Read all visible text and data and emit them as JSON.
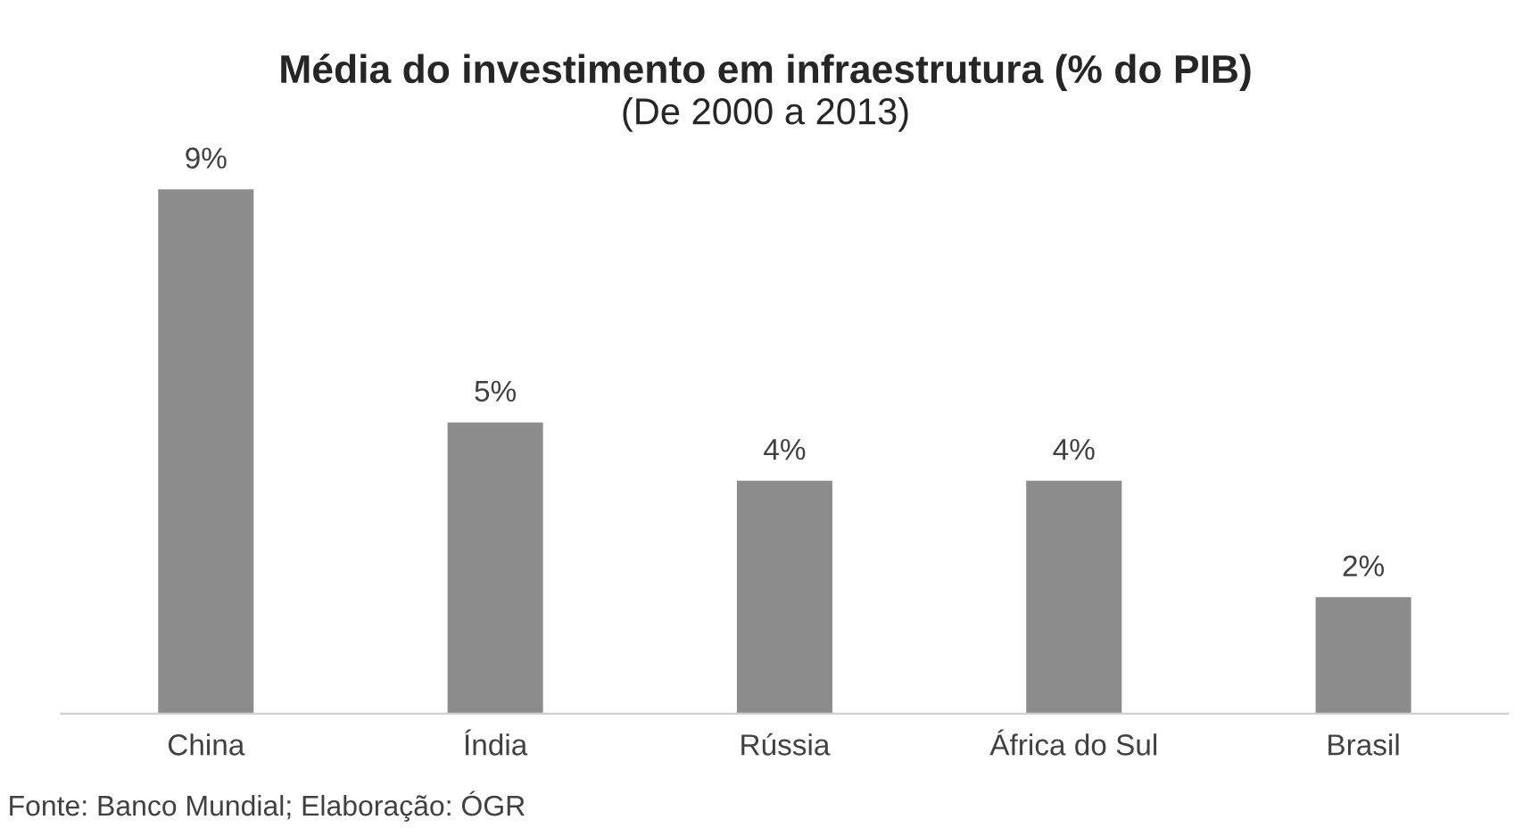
{
  "chart_data": {
    "type": "bar",
    "title": "Média do investimento em infraestrutura (% do PIB)",
    "subtitle": "(De 2000 a 2013)",
    "categories": [
      "China",
      "Índia",
      "Rússia",
      "África do Sul",
      "Brasil"
    ],
    "values": [
      9,
      5,
      4,
      4,
      2
    ],
    "value_labels": [
      "9%",
      "5%",
      "4%",
      "4%",
      "2%"
    ],
    "color": "#8c8c8c",
    "annotations": [
      "Fonte: Banco Mundial; Elaboração: ÓGR"
    ],
    "grid": false,
    "legend": false
  }
}
